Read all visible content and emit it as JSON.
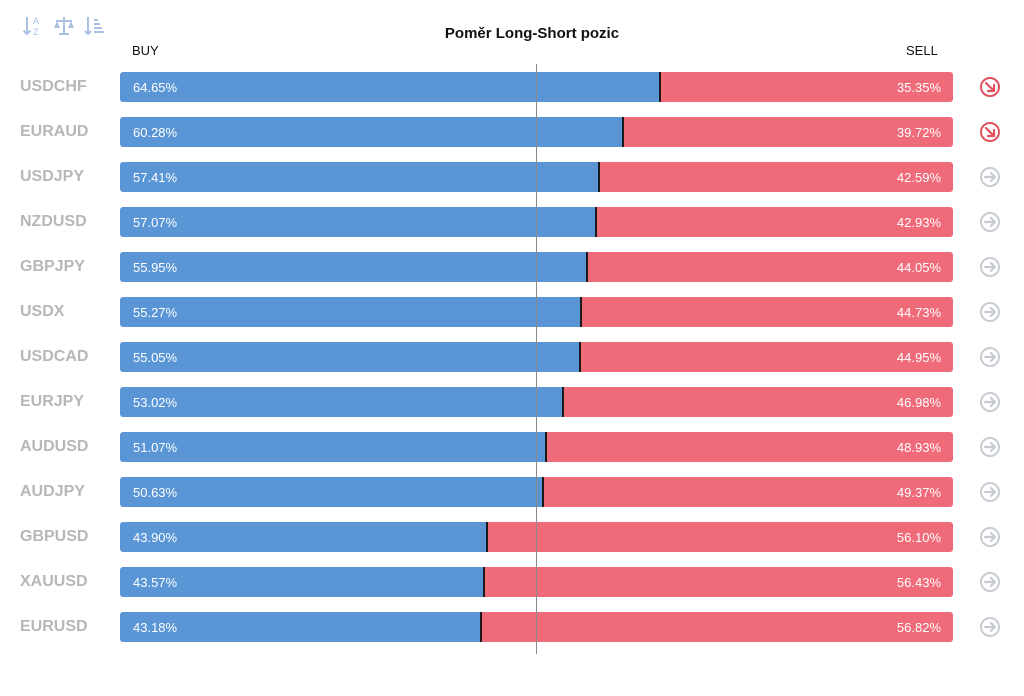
{
  "toolbar": {
    "icons": [
      "sort-az-icon",
      "balance-icon",
      "sort-list-icon"
    ]
  },
  "chart_data": {
    "type": "bar",
    "title": "Poměr Long-Short pozic",
    "buy_label": "BUY",
    "sell_label": "SELL",
    "colors": {
      "buy": "#5a96d6",
      "sell": "#f06b7a",
      "signal_down": "#e0525f",
      "signal_neutral": "#c7ccd3"
    },
    "categories": [
      "USDCHF",
      "EURAUD",
      "USDJPY",
      "NZDUSD",
      "GBPJPY",
      "USDX",
      "USDCAD",
      "EURJPY",
      "AUDUSD",
      "AUDJPY",
      "GBPUSD",
      "XAUUSD",
      "EURUSD"
    ],
    "series": [
      {
        "name": "BUY",
        "values": [
          64.65,
          60.28,
          57.41,
          57.07,
          55.95,
          55.27,
          55.05,
          53.02,
          51.07,
          50.63,
          43.9,
          43.57,
          43.18
        ],
        "labels": [
          "64.65%",
          "60.28%",
          "57.41%",
          "57.07%",
          "55.95%",
          "55.27%",
          "55.05%",
          "53.02%",
          "51.07%",
          "50.63%",
          "43.90%",
          "43.57%",
          "43.18%"
        ]
      },
      {
        "name": "SELL",
        "values": [
          35.35,
          39.72,
          42.59,
          42.93,
          44.05,
          44.73,
          44.95,
          46.98,
          48.93,
          49.37,
          56.1,
          56.43,
          56.82
        ],
        "labels": [
          "35.35%",
          "39.72%",
          "42.59%",
          "42.93%",
          "44.05%",
          "44.73%",
          "44.95%",
          "46.98%",
          "48.93%",
          "49.37%",
          "56.10%",
          "56.43%",
          "56.82%"
        ]
      }
    ],
    "signals": [
      "down",
      "down",
      "neutral",
      "neutral",
      "neutral",
      "neutral",
      "neutral",
      "neutral",
      "neutral",
      "neutral",
      "neutral",
      "neutral",
      "neutral"
    ],
    "xlim": [
      0,
      100
    ]
  }
}
